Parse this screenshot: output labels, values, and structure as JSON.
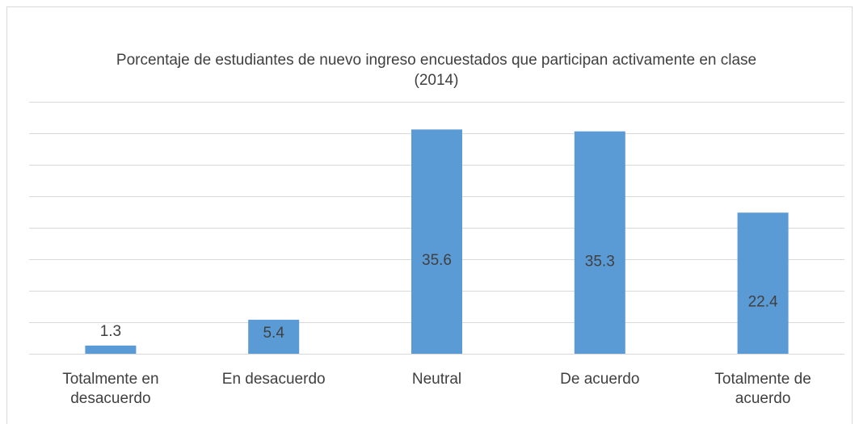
{
  "chart_data": {
    "type": "bar",
    "title": "Porcentaje de estudiantes de nuevo ingreso encuestados que participan activamente en clase (2014)",
    "categories": [
      "Totalmente en desacuerdo",
      "En desacuerdo",
      "Neutral",
      "De acuerdo",
      "Totalmente de acuerdo"
    ],
    "values": [
      1.3,
      5.4,
      35.6,
      35.3,
      22.4
    ],
    "color": "#5b9bd5",
    "ylim": [
      0,
      40
    ],
    "yticks": [
      0,
      5,
      10,
      15,
      20,
      25,
      30,
      35,
      40
    ],
    "grid": true
  }
}
